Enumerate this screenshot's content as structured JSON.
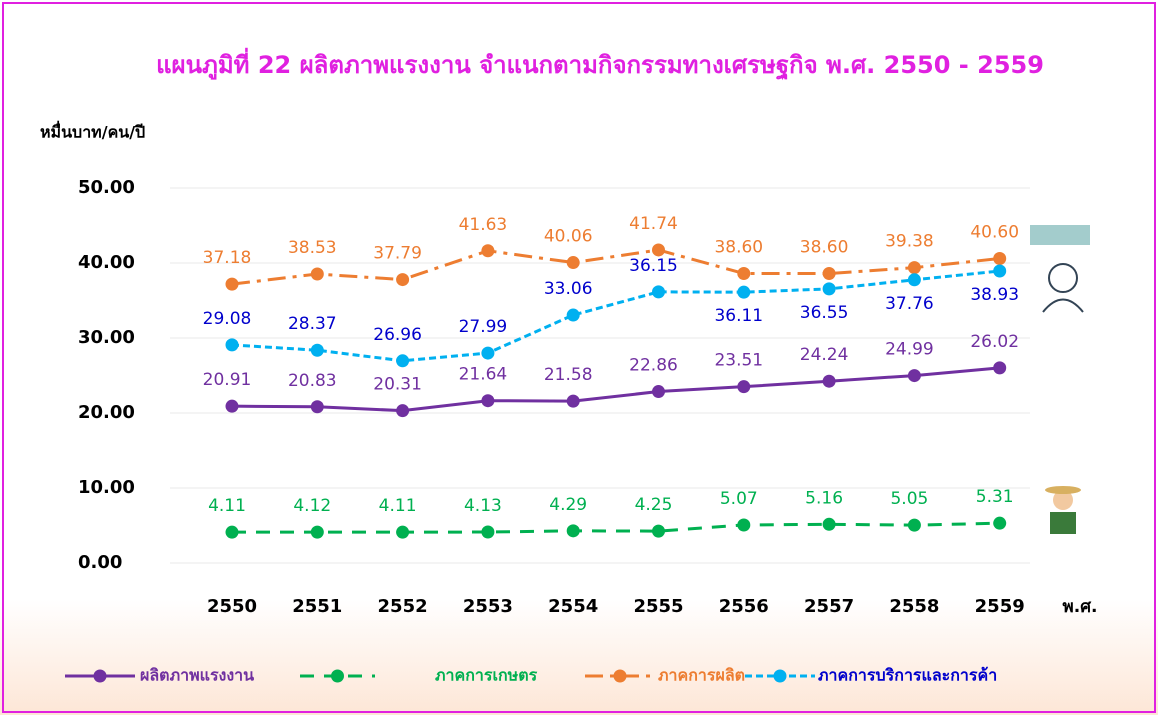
{
  "chart_data": {
    "type": "line",
    "title": "แผนภูมิที่ 22  ผลิตภาพแรงงาน  จำแนกตามกิจกรรมทางเศรษฐกิจ พ.ศ. 2550 - 2559",
    "y_axis_label": "หมื่นบาท/คน/ปี",
    "x_axis_label": "พ.ศ.",
    "categories": [
      "2550",
      "2551",
      "2552",
      "2553",
      "2554",
      "2555",
      "2556",
      "2557",
      "2558",
      "2559"
    ],
    "ylim": [
      0,
      50
    ],
    "yticks": [
      {
        "value": 0,
        "label": "0.00"
      },
      {
        "value": 10,
        "label": "10.00"
      },
      {
        "value": 20,
        "label": "20.00"
      },
      {
        "value": 30,
        "label": "30.00"
      },
      {
        "value": 40,
        "label": "40.00"
      },
      {
        "value": 50,
        "label": "50.00"
      }
    ],
    "series": [
      {
        "name": "ผลิตภาพแรงงาน",
        "color": "#7030a0",
        "values": [
          20.91,
          20.83,
          20.31,
          21.64,
          21.58,
          22.86,
          23.51,
          24.24,
          24.99,
          26.02
        ],
        "value_labels": [
          "20.91",
          "20.83",
          "20.31",
          "21.64",
          "21.58",
          "22.86",
          "23.51",
          "24.24",
          "24.99",
          "26.02"
        ]
      },
      {
        "name": "ภาคการเกษตร",
        "color": "#00b050",
        "values": [
          4.11,
          4.12,
          4.11,
          4.13,
          4.29,
          4.25,
          5.07,
          5.16,
          5.05,
          5.31
        ],
        "value_labels": [
          "4.11",
          "4.12",
          "4.11",
          "4.13",
          "4.29",
          "4.25",
          "5.07",
          "5.16",
          "5.05",
          "5.31"
        ]
      },
      {
        "name": "ภาคการผลิต",
        "color": "#ed7d31",
        "values": [
          37.18,
          38.53,
          37.79,
          41.63,
          40.06,
          41.74,
          38.6,
          38.6,
          39.38,
          40.6
        ],
        "value_labels": [
          "37.18",
          "38.53",
          "37.79",
          "41.63",
          "40.06",
          "41.74",
          "38.60",
          "38.60",
          "39.38",
          "40.60"
        ]
      },
      {
        "name": "ภาคการบริการและการค้า",
        "color": "#00b0f0",
        "values": [
          29.08,
          28.37,
          26.96,
          27.99,
          33.06,
          36.15,
          36.11,
          36.55,
          37.76,
          38.93
        ],
        "value_labels": [
          "29.08",
          "28.37",
          "26.96",
          "27.99",
          "33.06",
          "36.15",
          "36.11",
          "36.55",
          "37.76",
          "38.93"
        ]
      }
    ]
  }
}
